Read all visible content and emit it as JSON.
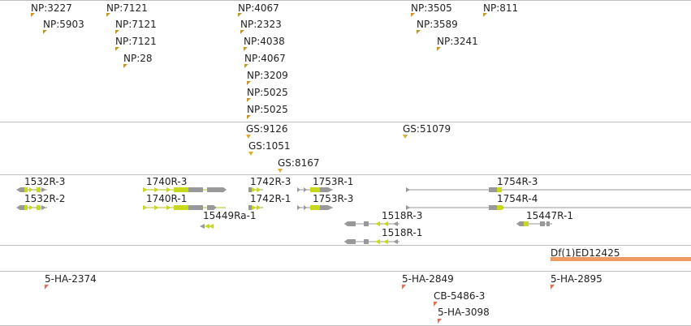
{
  "np_track": {
    "features": [
      "NP:3227",
      "NP:5903",
      "NP:7121",
      "NP:7121",
      "NP:7121",
      "NP:28",
      "NP:4067",
      "NP:2323",
      "NP:4038",
      "NP:4067",
      "NP:3209",
      "NP:5025",
      "NP:5025",
      "NP:3505",
      "NP:3589",
      "NP:3241",
      "NP:811"
    ],
    "marker_color": "#c8961e"
  },
  "gs_track": {
    "features": [
      "GS:9126",
      "GS:1051",
      "GS:8167",
      "GS:51079"
    ],
    "marker_color": "#e3ac2d"
  },
  "transcripts_track": {
    "features": [
      "1532R-3",
      "1532R-2",
      "1740R-3",
      "1740R-1",
      "15449Ra-1",
      "1742R-3",
      "1742R-1",
      "1753R-1",
      "1753R-3",
      "1518R-3",
      "1518R-1",
      "1754R-3",
      "1754R-4",
      "15447R-1"
    ],
    "exon_color": "#c8d81e",
    "utr_color": "#999999"
  },
  "deficiency_track": {
    "features": [
      "Df(1)ED12425"
    ],
    "bar_color": "#ef9a62"
  },
  "insertion_track": {
    "features": [
      "5-HA-2374",
      "5-HA-2849",
      "CB-5486-3",
      "5-HA-3098",
      "5-HA-2895"
    ],
    "marker_color": "#ee6a4f"
  }
}
